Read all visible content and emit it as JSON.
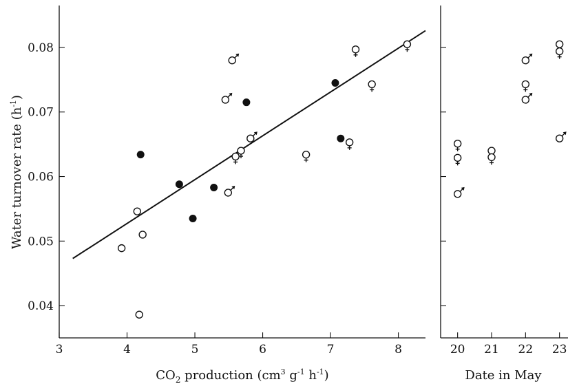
{
  "chart_data": [
    {
      "type": "scatter",
      "xlabel_base": "CO",
      "xlabel_sub": "2",
      "xlabel_rest": " production (cm",
      "xlabel_sup1": "3",
      "xlabel_mid": " g",
      "xlabel_sup2": "-1",
      "xlabel_mid2": " h",
      "xlabel_sup3": "-1",
      "xlabel_end": ")",
      "ylabel_base": "Water turnover rate (h",
      "ylabel_sup": "-1",
      "ylabel_end": ")",
      "xlim": [
        3,
        8.4
      ],
      "ylim": [
        0.035,
        0.0865
      ],
      "x_ticks": [
        "3",
        "4",
        "5",
        "6",
        "7",
        "8"
      ],
      "y_ticks": [
        "0.04",
        "0.05",
        "0.06",
        "0.07",
        "0.08"
      ],
      "fit_line": {
        "x": [
          3.2,
          8.4
        ],
        "y": [
          0.0473,
          0.0826
        ]
      },
      "points": [
        {
          "x": 3.92,
          "y": 0.0489,
          "marker": "open"
        },
        {
          "x": 4.15,
          "y": 0.0546,
          "marker": "open"
        },
        {
          "x": 4.23,
          "y": 0.051,
          "marker": "open"
        },
        {
          "x": 4.18,
          "y": 0.0386,
          "marker": "open"
        },
        {
          "x": 4.2,
          "y": 0.0634,
          "marker": "filled"
        },
        {
          "x": 4.77,
          "y": 0.0588,
          "marker": "filled"
        },
        {
          "x": 4.97,
          "y": 0.0535,
          "marker": "filled"
        },
        {
          "x": 5.28,
          "y": 0.0583,
          "marker": "filled"
        },
        {
          "x": 5.76,
          "y": 0.0715,
          "marker": "filled"
        },
        {
          "x": 7.07,
          "y": 0.0745,
          "marker": "filled"
        },
        {
          "x": 7.15,
          "y": 0.0659,
          "marker": "filled"
        },
        {
          "x": 5.55,
          "y": 0.078,
          "marker": "male"
        },
        {
          "x": 5.45,
          "y": 0.0719,
          "marker": "male"
        },
        {
          "x": 5.82,
          "y": 0.0659,
          "marker": "male"
        },
        {
          "x": 5.49,
          "y": 0.0575,
          "marker": "male"
        },
        {
          "x": 5.6,
          "y": 0.0631,
          "marker": "female"
        },
        {
          "x": 5.68,
          "y": 0.064,
          "marker": "female"
        },
        {
          "x": 6.64,
          "y": 0.0634,
          "marker": "female"
        },
        {
          "x": 7.28,
          "y": 0.0653,
          "marker": "female"
        },
        {
          "x": 7.37,
          "y": 0.0797,
          "marker": "female"
        },
        {
          "x": 7.61,
          "y": 0.0743,
          "marker": "female"
        },
        {
          "x": 8.13,
          "y": 0.0805,
          "marker": "female"
        }
      ]
    },
    {
      "type": "scatter",
      "xlabel": "Date in May",
      "xlim": [
        19.5,
        23.25
      ],
      "ylim": [
        0.035,
        0.0865
      ],
      "x_ticks": [
        "20",
        "21",
        "22",
        "23"
      ],
      "points": [
        {
          "x": 20,
          "y": 0.0651,
          "marker": "female"
        },
        {
          "x": 20,
          "y": 0.0629,
          "marker": "female"
        },
        {
          "x": 20,
          "y": 0.0573,
          "marker": "male"
        },
        {
          "x": 21,
          "y": 0.064,
          "marker": "female"
        },
        {
          "x": 21,
          "y": 0.063,
          "marker": "female"
        },
        {
          "x": 22,
          "y": 0.078,
          "marker": "male"
        },
        {
          "x": 22,
          "y": 0.0743,
          "marker": "female"
        },
        {
          "x": 22,
          "y": 0.0719,
          "marker": "male"
        },
        {
          "x": 23,
          "y": 0.0805,
          "marker": "female"
        },
        {
          "x": 23,
          "y": 0.0794,
          "marker": "female"
        },
        {
          "x": 23,
          "y": 0.0659,
          "marker": "male"
        }
      ]
    }
  ]
}
